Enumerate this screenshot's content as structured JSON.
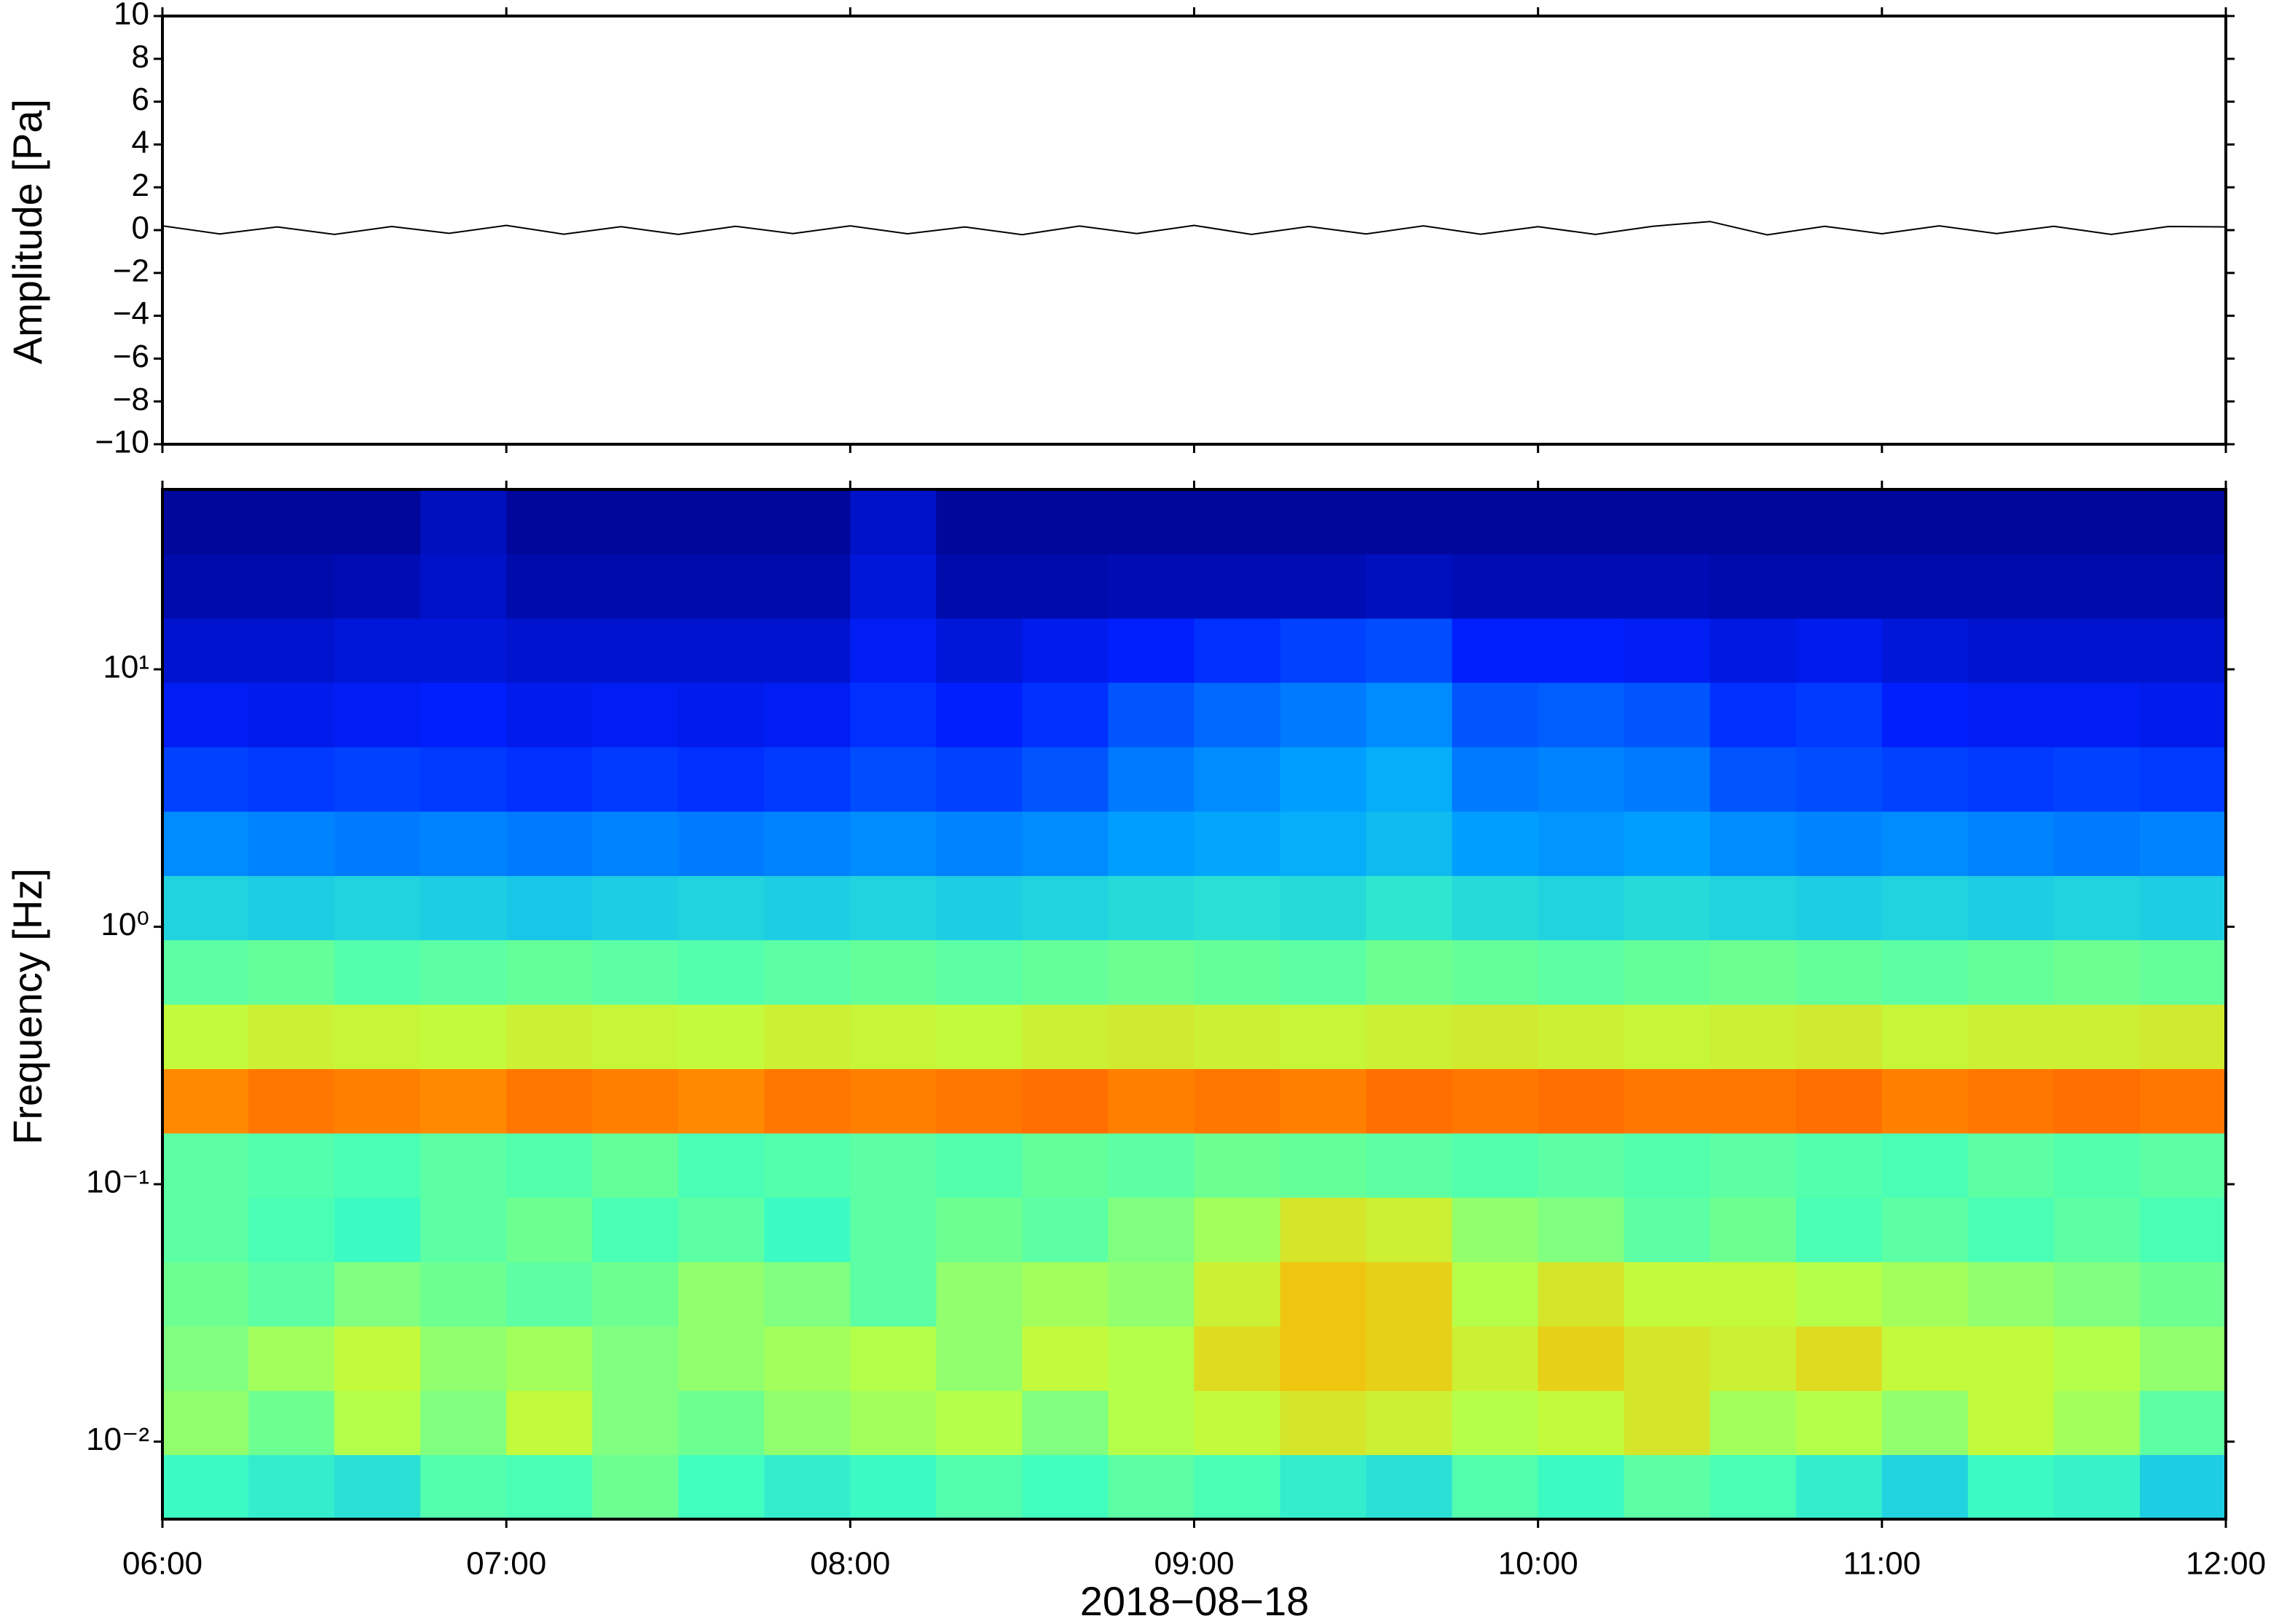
{
  "chart_data": [
    {
      "type": "line",
      "ylabel": "Amplitude [Pa]",
      "color": "#000000",
      "x": [
        "06:00",
        "06:10",
        "06:20",
        "06:30",
        "06:40",
        "06:50",
        "07:00",
        "07:10",
        "07:20",
        "07:30",
        "07:40",
        "07:50",
        "08:00",
        "08:10",
        "08:20",
        "08:30",
        "08:40",
        "08:50",
        "09:00",
        "09:10",
        "09:20",
        "09:30",
        "09:40",
        "09:50",
        "10:00",
        "10:10",
        "10:20",
        "10:30",
        "10:40",
        "10:50",
        "11:00",
        "11:10",
        "11:20",
        "11:30",
        "11:40",
        "11:50",
        "12:00"
      ],
      "values": [
        0.2,
        -0.18,
        0.15,
        -0.2,
        0.17,
        -0.15,
        0.22,
        -0.19,
        0.16,
        -0.2,
        0.18,
        -0.16,
        0.2,
        -0.17,
        0.15,
        -0.21,
        0.19,
        -0.16,
        0.22,
        -0.2,
        0.17,
        -0.18,
        0.2,
        -0.19,
        0.16,
        -0.2,
        0.18,
        0.4,
        -0.22,
        0.18,
        -0.17,
        0.2,
        -0.16,
        0.18,
        -0.2,
        0.17,
        0.15
      ],
      "ylim": [
        -10,
        10
      ],
      "yticks": [
        {
          "value": -10,
          "label": "−10"
        },
        {
          "value": -8,
          "label": "−8"
        },
        {
          "value": -6,
          "label": "−6"
        },
        {
          "value": -4,
          "label": "−4"
        },
        {
          "value": -2,
          "label": "−2"
        },
        0,
        2,
        4,
        6,
        8,
        10
      ]
    },
    {
      "type": "heatmap",
      "ylabel": "Frequency [Hz]",
      "xlabel": "2018−08−18",
      "ylog": true,
      "x": [
        "06:00",
        "06:15",
        "06:30",
        "06:45",
        "07:00",
        "07:15",
        "07:30",
        "07:45",
        "08:00",
        "08:15",
        "08:30",
        "08:45",
        "09:00",
        "09:15",
        "09:30",
        "09:45",
        "10:00",
        "10:15",
        "10:30",
        "10:45",
        "11:00",
        "11:15",
        "11:30",
        "11:45"
      ],
      "y_bins": [
        0.005,
        0.0089,
        0.0158,
        0.0281,
        0.05,
        0.089,
        0.158,
        0.281,
        0.5,
        0.89,
        1.58,
        2.81,
        5,
        8.9,
        15.8,
        28.1,
        50
      ],
      "z": [
        [
          4.2,
          4.0,
          3.8,
          4.5,
          4.4,
          4.8,
          4.3,
          4.0,
          4.2,
          4.5,
          4.3,
          4.6,
          4.4,
          4.0,
          3.8,
          4.5,
          4.2,
          4.6,
          4.4,
          4.0,
          3.6,
          4.2,
          4.1,
          3.5
        ],
        [
          5.2,
          4.8,
          5.6,
          5.0,
          5.8,
          5.0,
          4.8,
          5.2,
          5.4,
          5.6,
          5.0,
          5.6,
          5.8,
          6.2,
          6.0,
          5.6,
          5.8,
          6.2,
          5.4,
          5.6,
          5.2,
          5.8,
          5.4,
          4.6
        ],
        [
          5.0,
          5.4,
          5.8,
          5.2,
          5.4,
          5.0,
          5.2,
          5.4,
          5.6,
          5.2,
          5.8,
          5.6,
          6.4,
          6.8,
          6.6,
          6.0,
          6.6,
          6.2,
          6.0,
          6.4,
          5.8,
          5.8,
          5.6,
          5.2
        ],
        [
          4.8,
          4.6,
          5.0,
          4.8,
          4.6,
          4.8,
          5.2,
          5.0,
          4.6,
          5.2,
          5.4,
          5.2,
          6.0,
          6.8,
          6.6,
          5.6,
          6.2,
          5.8,
          5.8,
          5.6,
          5.4,
          5.2,
          5.0,
          4.8
        ],
        [
          4.6,
          4.4,
          4.2,
          4.6,
          4.8,
          4.4,
          4.6,
          4.2,
          4.6,
          4.8,
          4.6,
          5.0,
          5.4,
          6.2,
          6.0,
          5.2,
          5.0,
          4.6,
          4.8,
          4.4,
          4.6,
          4.4,
          4.6,
          4.4
        ],
        [
          4.6,
          4.5,
          4.4,
          4.6,
          4.5,
          4.7,
          4.4,
          4.5,
          4.6,
          4.5,
          4.7,
          4.6,
          4.8,
          4.7,
          4.6,
          4.5,
          4.6,
          4.5,
          4.6,
          4.5,
          4.4,
          4.6,
          4.5,
          4.6
        ],
        [
          7.6,
          7.8,
          7.7,
          7.6,
          7.8,
          7.7,
          7.6,
          7.8,
          7.7,
          7.8,
          7.9,
          7.7,
          7.8,
          7.7,
          7.9,
          7.8,
          7.9,
          7.8,
          7.8,
          7.9,
          7.7,
          7.8,
          7.9,
          7.8
        ],
        [
          5.8,
          6.0,
          5.9,
          5.8,
          6.0,
          5.9,
          5.8,
          6.0,
          5.9,
          5.8,
          6.0,
          6.1,
          6.0,
          5.9,
          6.0,
          6.1,
          6.0,
          5.9,
          6.0,
          6.1,
          5.9,
          6.0,
          6.0,
          6.1
        ],
        [
          4.6,
          4.7,
          4.5,
          4.6,
          4.7,
          4.6,
          4.5,
          4.6,
          4.7,
          4.6,
          4.7,
          4.8,
          4.7,
          4.6,
          4.8,
          4.7,
          4.6,
          4.7,
          4.8,
          4.7,
          4.6,
          4.7,
          4.8,
          4.7
        ],
        [
          3.6,
          3.5,
          3.6,
          3.5,
          3.4,
          3.5,
          3.6,
          3.5,
          3.6,
          3.5,
          3.6,
          3.7,
          3.8,
          3.7,
          3.9,
          3.7,
          3.6,
          3.7,
          3.6,
          3.5,
          3.6,
          3.5,
          3.6,
          3.5
        ],
        [
          2.6,
          2.5,
          2.4,
          2.5,
          2.4,
          2.5,
          2.4,
          2.5,
          2.6,
          2.5,
          2.6,
          2.8,
          2.9,
          3.0,
          3.2,
          2.8,
          2.7,
          2.8,
          2.6,
          2.5,
          2.6,
          2.5,
          2.4,
          2.5
        ],
        [
          1.8,
          1.7,
          1.8,
          1.7,
          1.6,
          1.7,
          1.6,
          1.7,
          1.9,
          1.8,
          2.0,
          2.4,
          2.6,
          2.8,
          3.0,
          2.4,
          2.5,
          2.4,
          2.0,
          1.9,
          1.8,
          1.7,
          1.8,
          1.7
        ],
        [
          1.3,
          1.2,
          1.3,
          1.4,
          1.2,
          1.3,
          1.2,
          1.3,
          1.6,
          1.4,
          1.6,
          2.0,
          2.2,
          2.4,
          2.6,
          2.0,
          2.1,
          2.0,
          1.6,
          1.7,
          1.4,
          1.3,
          1.3,
          1.2
        ],
        [
          0.9,
          0.9,
          1.0,
          1.0,
          0.9,
          0.9,
          0.9,
          0.9,
          1.3,
          1.0,
          1.2,
          1.4,
          1.6,
          1.8,
          1.9,
          1.4,
          1.4,
          1.3,
          1.1,
          1.2,
          1.0,
          0.9,
          0.9,
          0.9
        ],
        [
          0.5,
          0.5,
          0.6,
          0.8,
          0.5,
          0.5,
          0.5,
          0.5,
          1.0,
          0.5,
          0.5,
          0.6,
          0.6,
          0.6,
          0.7,
          0.6,
          0.6,
          0.6,
          0.5,
          0.5,
          0.5,
          0.5,
          0.5,
          0.5
        ],
        [
          0.3,
          0.3,
          0.3,
          0.7,
          0.3,
          0.3,
          0.3,
          0.3,
          0.8,
          0.3,
          0.3,
          0.3,
          0.3,
          0.3,
          0.3,
          0.3,
          0.3,
          0.3,
          0.3,
          0.3,
          0.3,
          0.3,
          0.3,
          0.3
        ]
      ],
      "zlim": [
        0,
        10
      ],
      "colormap": [
        "#00007f",
        "#0020ff",
        "#00a4ff",
        "#40ffbf",
        "#bfff40",
        "#ffb300",
        "#ff3000",
        "#7f0000"
      ],
      "xlim": [
        "06:00",
        "12:00"
      ],
      "xticks": [
        "06:00",
        "07:00",
        "08:00",
        "09:00",
        "10:00",
        "11:00",
        "12:00"
      ],
      "ylim": [
        0.005,
        50
      ],
      "yticks": [
        {
          "value": 0.01,
          "label": "10⁻²"
        },
        {
          "value": 0.1,
          "label": "10⁻¹"
        },
        {
          "value": 1,
          "label": "10⁰"
        },
        {
          "value": 10,
          "label": "10¹"
        }
      ]
    }
  ]
}
